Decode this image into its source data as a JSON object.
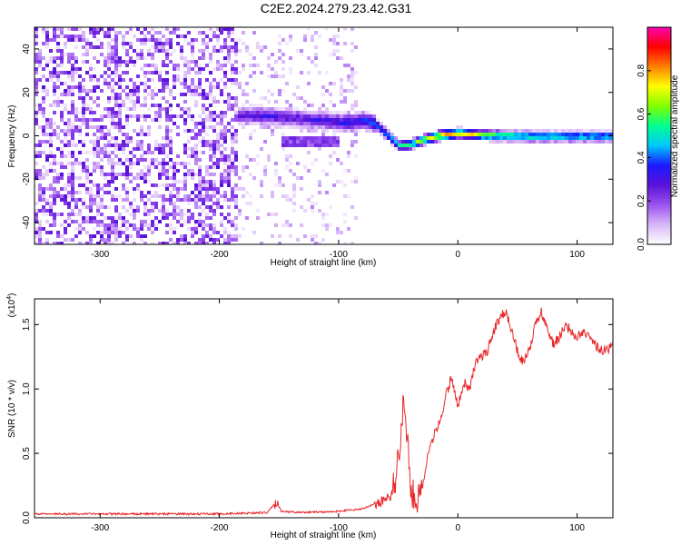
{
  "title": "C2E2.2024.279.23.42.G31",
  "chart_data": [
    {
      "type": "heatmap",
      "xlabel": "Height of straight line (km)",
      "ylabel": "Frequency (Hz)",
      "xlim": [
        -355,
        130
      ],
      "ylim": [
        -50,
        50
      ],
      "xticks": [
        "-300",
        "-200",
        "-100",
        "0",
        "100"
      ],
      "xtick_values": [
        -300,
        -200,
        -100,
        0,
        100
      ],
      "yticks": [
        "-40",
        "-20",
        "0",
        "20",
        "40"
      ],
      "ytick_values": [
        -40,
        -20,
        0,
        20,
        40
      ],
      "colorbar": {
        "label": "Normalized spectral amplitude",
        "range": [
          0,
          1
        ],
        "ticks": [
          "0.0",
          "0.2",
          "0.4",
          "0.6",
          "0.8"
        ],
        "tick_values": [
          0.0,
          0.2,
          0.4,
          0.6,
          0.8
        ],
        "colors": [
          "#ffffff",
          "#d8b6f8",
          "#9a52f0",
          "#5a12d8",
          "#1a1aff",
          "#00c8ff",
          "#00ff90",
          "#7fff00",
          "#ffff00",
          "#ff8000",
          "#ff0000",
          "#ff00b0"
        ]
      },
      "noise_region": {
        "x_from": -355,
        "x_to": -185,
        "level": 0.15
      },
      "sparse_region": {
        "x_from": -185,
        "x_to": -85,
        "level": 0.06
      },
      "ridge": [
        {
          "x": -185,
          "y": 10,
          "a": 0.3
        },
        {
          "x": -165,
          "y": 10,
          "a": 0.32
        },
        {
          "x": -140,
          "y": 9,
          "a": 0.3
        },
        {
          "x": -120,
          "y": 8,
          "a": 0.32
        },
        {
          "x": -100,
          "y": 7,
          "a": 0.35
        },
        {
          "x": -90,
          "y": 7,
          "a": 0.38
        },
        {
          "x": -80,
          "y": 8,
          "a": 0.4
        },
        {
          "x": -70,
          "y": 6,
          "a": 0.45
        },
        {
          "x": -60,
          "y": 1,
          "a": 0.5
        },
        {
          "x": -50,
          "y": -4,
          "a": 0.55
        },
        {
          "x": -40,
          "y": -3,
          "a": 0.65
        },
        {
          "x": -30,
          "y": -1,
          "a": 0.75
        },
        {
          "x": -15,
          "y": 1,
          "a": 0.85
        },
        {
          "x": 0,
          "y": 2,
          "a": 0.8
        },
        {
          "x": 20,
          "y": 1,
          "a": 0.7
        },
        {
          "x": 60,
          "y": 0.5,
          "a": 0.62
        },
        {
          "x": 100,
          "y": 0.5,
          "a": 0.58
        },
        {
          "x": 130,
          "y": 0.5,
          "a": 0.55
        }
      ],
      "secondary_band": {
        "x_from": -150,
        "x_to": -100,
        "y": -2,
        "a": 0.25
      }
    },
    {
      "type": "line",
      "xlabel": "Height of straight line (km)",
      "ylabel": "SNR (10 * v/v)",
      "y_multiplier": "(x10",
      "y_exponent": "4",
      "y_multiplier_close": ")",
      "xlim": [
        -355,
        130
      ],
      "ylim": [
        0,
        1.7
      ],
      "xticks": [
        "-300",
        "-200",
        "-100",
        "0",
        "100"
      ],
      "xtick_values": [
        -300,
        -200,
        -100,
        0,
        100
      ],
      "yticks": [
        "0.0",
        "0.5",
        "1.0",
        "1.5"
      ],
      "ytick_values": [
        0.0,
        0.5,
        1.0,
        1.5
      ],
      "color": "#e8282a",
      "series": [
        {
          "x": [
            -355,
            -300,
            -250,
            -200,
            -160,
            -152,
            -148,
            -130,
            -100,
            -80,
            -65,
            -55,
            -50,
            -46,
            -43,
            -40,
            -37,
            -35,
            -30,
            -25,
            -20,
            -15,
            -10,
            -5,
            0,
            5,
            10,
            15,
            20,
            25,
            30,
            35,
            40,
            45,
            50,
            55,
            60,
            65,
            70,
            75,
            80,
            85,
            90,
            95,
            100,
            105,
            110,
            115,
            120,
            125,
            130
          ],
          "y": [
            0.03,
            0.03,
            0.03,
            0.03,
            0.04,
            0.12,
            0.05,
            0.04,
            0.05,
            0.07,
            0.12,
            0.18,
            0.45,
            0.85,
            0.7,
            0.3,
            0.15,
            0.1,
            0.2,
            0.5,
            0.65,
            0.75,
            0.95,
            1.1,
            0.85,
            1.05,
            1.0,
            1.2,
            1.25,
            1.3,
            1.45,
            1.55,
            1.6,
            1.45,
            1.3,
            1.2,
            1.3,
            1.5,
            1.6,
            1.45,
            1.35,
            1.4,
            1.5,
            1.45,
            1.4,
            1.45,
            1.4,
            1.35,
            1.3,
            1.3,
            1.35
          ]
        }
      ]
    }
  ]
}
